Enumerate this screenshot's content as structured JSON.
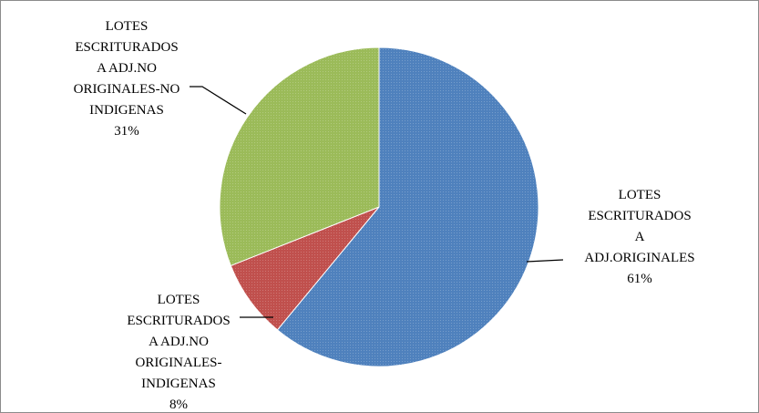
{
  "chart_data": {
    "type": "pie",
    "slices": [
      {
        "label_lines": [
          "LOTES",
          "ESCRITURADOS",
          "A",
          "ADJ.ORIGINALES"
        ],
        "percent_label": "61%",
        "value": 61,
        "color": "#4f81bd"
      },
      {
        "label_lines": [
          "LOTES",
          "ESCRITURADOS",
          "A ADJ.NO",
          "ORIGINALES-",
          "INDIGENAS"
        ],
        "percent_label": "8%",
        "value": 8,
        "color": "#c0504d"
      },
      {
        "label_lines": [
          "LOTES",
          "ESCRITURADOS",
          "A ADJ.NO",
          "ORIGINALES-NO",
          "INDIGENAS"
        ],
        "percent_label": "31%",
        "value": 31,
        "color": "#9bbb59"
      }
    ],
    "start_angle_deg": 0,
    "direction": "clockwise",
    "legend": "none",
    "data_labels": "outside-with-leader-lines"
  }
}
